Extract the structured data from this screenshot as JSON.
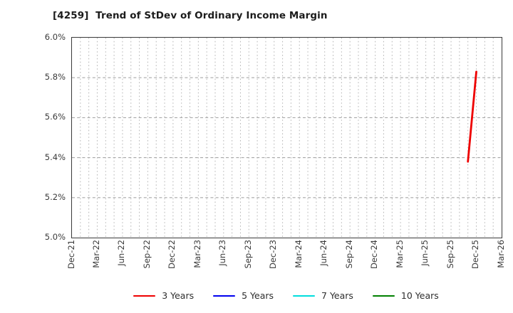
{
  "chart_data": {
    "type": "line",
    "title": "[4259]  Trend of StDev of Ordinary Income Margin",
    "xlabel": "",
    "ylabel": "",
    "ylim": [
      5.0,
      6.0
    ],
    "y_ticks": [
      5.0,
      5.2,
      5.4,
      5.6,
      5.8,
      6.0
    ],
    "y_tick_labels": [
      "5.0%",
      "5.2%",
      "5.4%",
      "5.6%",
      "5.8%",
      "6.0%"
    ],
    "x_axis": {
      "unit": "month",
      "start_label": "Dec-21",
      "end_label": "Mar-26",
      "total_months": 51,
      "tick_every_months": 3,
      "tick_labels": [
        "Dec-21",
        "Mar-22",
        "Jun-22",
        "Sep-22",
        "Dec-22",
        "Mar-23",
        "Jun-23",
        "Sep-23",
        "Dec-23",
        "Mar-24",
        "Jun-24",
        "Sep-24",
        "Dec-24",
        "Mar-25",
        "Jun-25",
        "Sep-25",
        "Dec-25",
        "Mar-26"
      ]
    },
    "grid": {
      "vertical": "dotted, every month",
      "horizontal": "dashed, every 0.2%",
      "vertical_color": "#b5b5b5",
      "horizontal_color": "#a8a8a8"
    },
    "legend_position": "bottom center",
    "series": [
      {
        "name": "3 Years",
        "color": "#ee0000",
        "points": [
          {
            "x_month": "Nov-25",
            "month_index": 47,
            "value_pct": 5.38
          },
          {
            "x_month": "Dec-25",
            "month_index": 48,
            "value_pct": 5.83
          }
        ]
      },
      {
        "name": "5 Years",
        "color": "#0000ee",
        "points": []
      },
      {
        "name": "7 Years",
        "color": "#00dddd",
        "points": []
      },
      {
        "name": "10 Years",
        "color": "#008000",
        "points": []
      }
    ]
  },
  "colors": {
    "background": "#ffffff",
    "plot_border": "#3a3a3a",
    "title_text": "#1c1c1c",
    "tick_text": "#3a3a3a",
    "legend_text": "#2e2e2e"
  }
}
